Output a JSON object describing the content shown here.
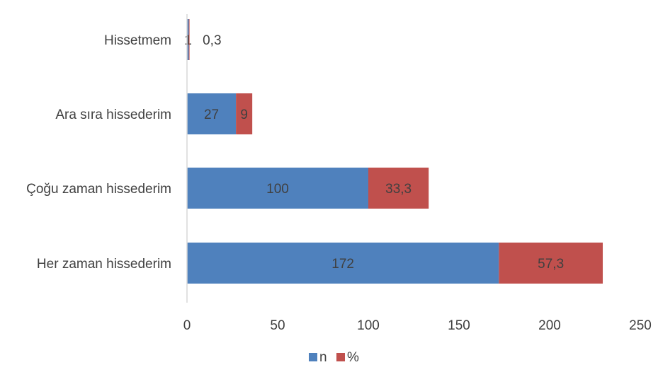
{
  "chart_data": {
    "type": "bar",
    "orientation": "horizontal",
    "stacked": true,
    "categories": [
      "Her zaman hissederim",
      "Çoğu zaman hissederim",
      "Ara sıra hissederim",
      "Hissetmem"
    ],
    "series": [
      {
        "name": "n",
        "color": "#4F81BD",
        "values": [
          172,
          100,
          27,
          1
        ],
        "labels": [
          "172",
          "100",
          "27",
          "1"
        ]
      },
      {
        "name": "%",
        "color": "#C0504D",
        "values": [
          57.3,
          33.3,
          9,
          0.3
        ],
        "labels": [
          "57,3",
          "33,3",
          "9",
          "0,3"
        ]
      }
    ],
    "xlim": [
      0,
      250
    ],
    "xticks": [
      0,
      50,
      100,
      150,
      200,
      250
    ],
    "xtick_labels": [
      "0",
      "50",
      "100",
      "150",
      "200",
      "250"
    ],
    "grid": false,
    "legend_position": "bottom"
  }
}
